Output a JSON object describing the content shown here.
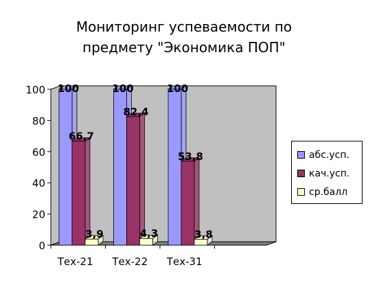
{
  "chart_data": {
    "type": "bar",
    "title": [
      "Мониторинг успеваемости по",
      "предмету \"Экономика ПОП\""
    ],
    "categories": [
      "Тех-21",
      "Тех-22",
      "Тех-31",
      ""
    ],
    "series": [
      {
        "name": "абс.усп.",
        "values": [
          100,
          100,
          100,
          null
        ],
        "labels": [
          "100",
          "100",
          "100",
          ""
        ],
        "color": "#9999ff"
      },
      {
        "name": "кач.усп.",
        "values": [
          66.7,
          82.4,
          53.8,
          null
        ],
        "labels": [
          "66,7",
          "82,4",
          "53,8",
          ""
        ],
        "color": "#993366"
      },
      {
        "name": "ср.балл",
        "values": [
          3.9,
          4.3,
          3.8,
          null
        ],
        "labels": [
          "3,9",
          "4,3",
          "3,8",
          ""
        ],
        "color": "#ffffcc"
      }
    ],
    "ylim": [
      0,
      100
    ],
    "yticks": [
      0,
      20,
      40,
      60,
      80,
      100
    ],
    "ytick_labels": [
      "0",
      "20",
      "40",
      "60",
      "80",
      "100"
    ],
    "grid": false,
    "legend_position": "right",
    "wall_color": "#c0c0c0",
    "floor_color": "#808080"
  }
}
